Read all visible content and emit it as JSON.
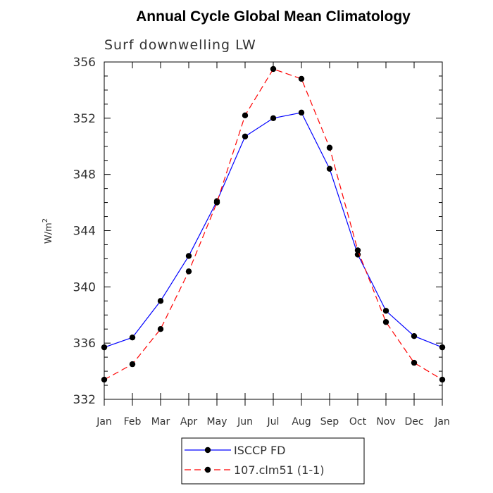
{
  "chart_data": {
    "type": "line",
    "title": "Annual Cycle Global Mean Climatology",
    "subtitle": "Surf downwelling LW",
    "ylabel_base": "W/m",
    "ylabel_sup": "2",
    "xlabel": "",
    "categories": [
      "Jan",
      "Feb",
      "Mar",
      "Apr",
      "May",
      "Jun",
      "Jul",
      "Aug",
      "Sep",
      "Oct",
      "Nov",
      "Dec",
      "Jan"
    ],
    "ylim": [
      332,
      356
    ],
    "yticks": [
      "332",
      "336",
      "340",
      "344",
      "348",
      "352",
      "356"
    ],
    "grid": false,
    "legend_position": "bottom",
    "series": [
      {
        "name": "ISCCP FD",
        "color": "#0000ff",
        "dash": "solid",
        "values": [
          335.7,
          336.4,
          339.0,
          342.2,
          346.1,
          350.7,
          352.0,
          352.4,
          348.4,
          342.3,
          338.3,
          336.5,
          335.7
        ]
      },
      {
        "name": "107.clm51 (1-1)",
        "color": "#ff0000",
        "dash": "dashed",
        "values": [
          333.4,
          334.5,
          337.0,
          341.1,
          346.0,
          352.2,
          355.5,
          354.8,
          349.9,
          342.6,
          337.5,
          334.6,
          333.4
        ]
      }
    ]
  }
}
